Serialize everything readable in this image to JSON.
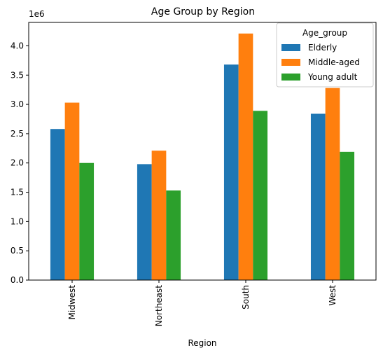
{
  "chart_data": {
    "type": "bar",
    "title": "Age Group by Region",
    "xlabel": "Region",
    "ylabel": "",
    "y_offset_label": "1e6",
    "y_scale": 1000000,
    "categories": [
      "Midwest",
      "Northeast",
      "South",
      "West"
    ],
    "series": [
      {
        "name": "Elderly",
        "color": "#1f77b4",
        "values": [
          2580000,
          1980000,
          3680000,
          2840000
        ]
      },
      {
        "name": "Middle-aged",
        "color": "#ff7f0e",
        "values": [
          3030000,
          2210000,
          4210000,
          3280000
        ]
      },
      {
        "name": "Young adult",
        "color": "#2ca02c",
        "values": [
          2000000,
          1530000,
          2890000,
          2190000
        ]
      }
    ],
    "ylim": [
      0,
      4400000
    ],
    "yticks": [
      0,
      500000,
      1000000,
      1500000,
      2000000,
      2500000,
      3000000,
      3500000,
      4000000
    ],
    "ytick_labels": [
      "0.0",
      "0.5",
      "1.0",
      "1.5",
      "2.0",
      "2.5",
      "3.0",
      "3.5",
      "4.0"
    ],
    "legend": {
      "title": "Age_group",
      "placement": "top-right"
    },
    "grid": false
  }
}
